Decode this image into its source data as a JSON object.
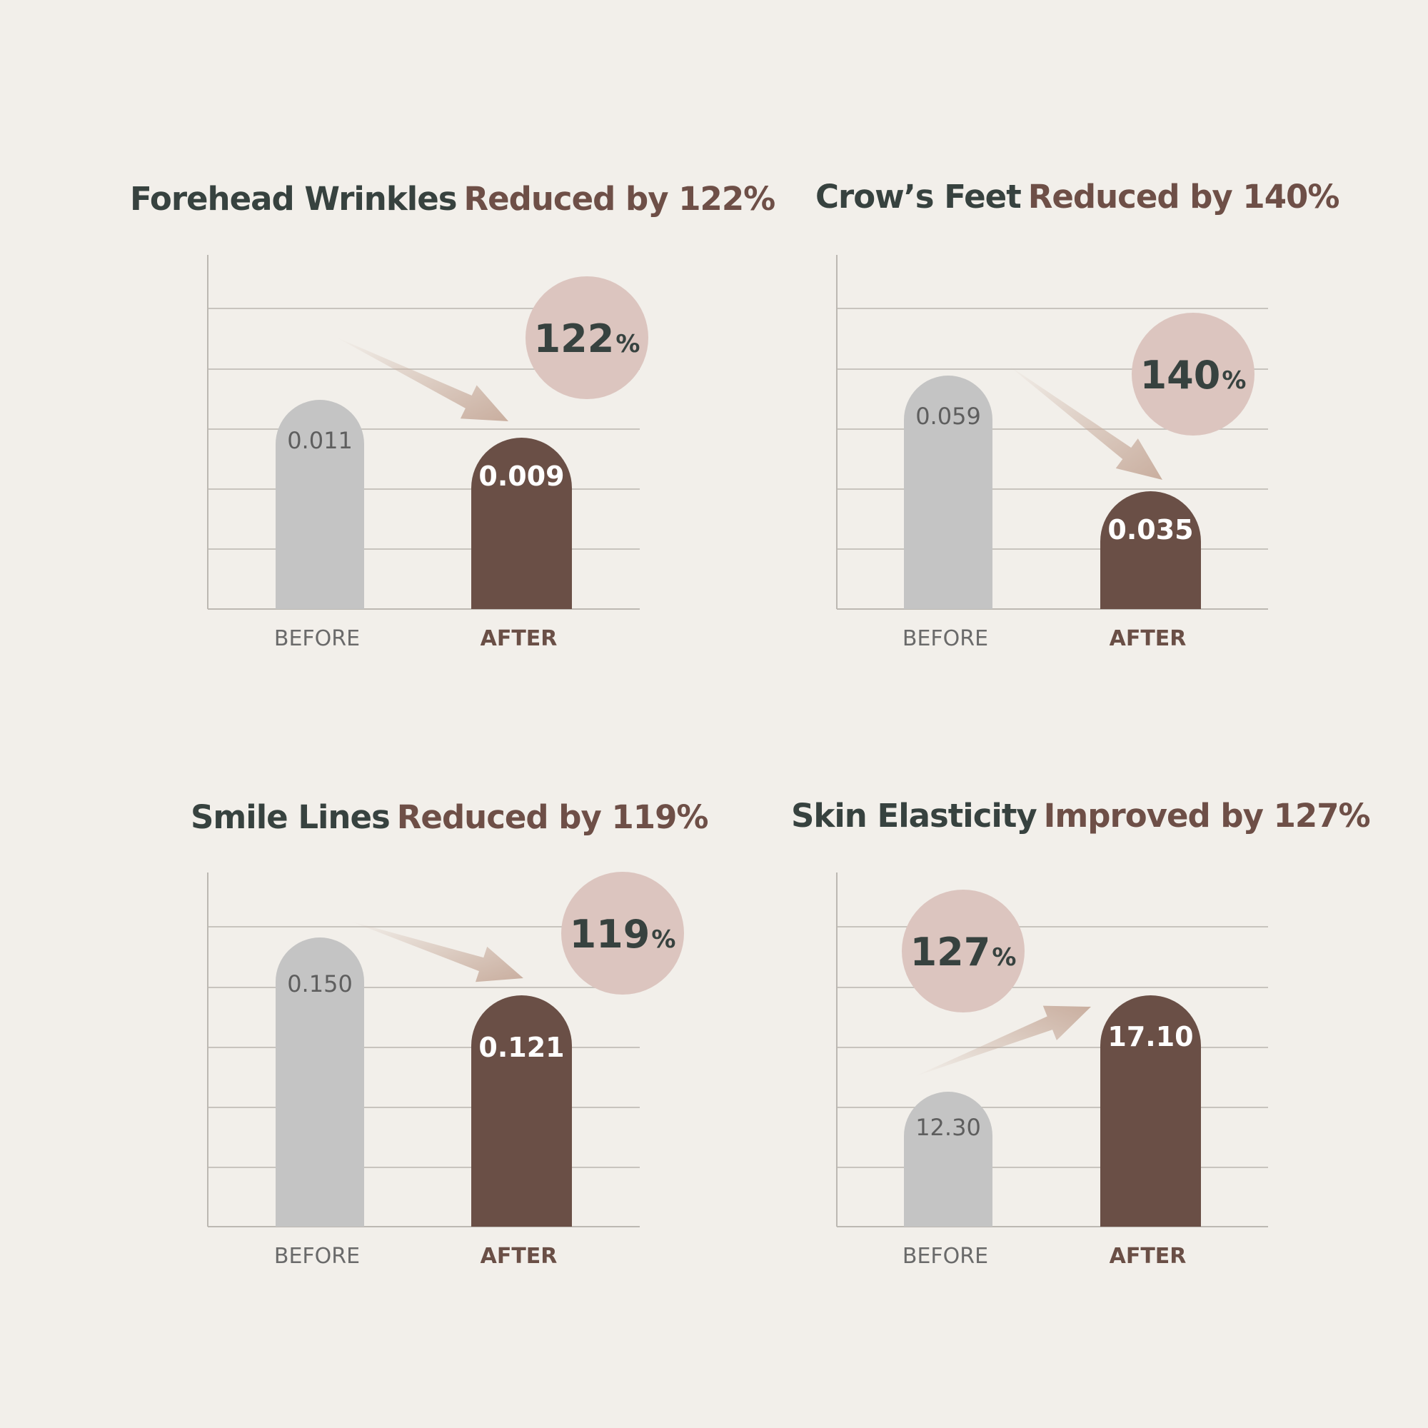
{
  "chart_data": [
    {
      "type": "bar",
      "title": "Forehead Wrinkles",
      "title_accent": "Reduced by 122%",
      "categories": [
        "BEFORE",
        "AFTER"
      ],
      "values": [
        0.011,
        0.009
      ],
      "value_labels": [
        "0.011",
        "0.009"
      ],
      "badge": {
        "number": "122",
        "unit": "%"
      },
      "trend": "down",
      "grid": true
    },
    {
      "type": "bar",
      "title": "Crow’s Feet",
      "title_accent": "Reduced by 140%",
      "categories": [
        "BEFORE",
        "AFTER"
      ],
      "values": [
        0.059,
        0.035
      ],
      "value_labels": [
        "0.059",
        "0.035"
      ],
      "badge": {
        "number": "140",
        "unit": "%"
      },
      "trend": "down",
      "grid": true
    },
    {
      "type": "bar",
      "title": "Smile Lines",
      "title_accent": "Reduced by 119%",
      "categories": [
        "BEFORE",
        "AFTER"
      ],
      "values": [
        0.15,
        0.121
      ],
      "value_labels": [
        "0.150",
        "0.121"
      ],
      "badge": {
        "number": "119",
        "unit": "%"
      },
      "trend": "down",
      "grid": true
    },
    {
      "type": "bar",
      "title": "Skin Elasticity",
      "title_accent": "Improved by 127%",
      "categories": [
        "BEFORE",
        "AFTER"
      ],
      "values": [
        12.3,
        17.1
      ],
      "value_labels": [
        "12.30",
        "17.10"
      ],
      "badge": {
        "number": "127",
        "unit": "%"
      },
      "trend": "up",
      "grid": true
    }
  ],
  "colors": {
    "background": "#f2efea",
    "before_bar": "#c4c4c4",
    "after_bar": "#6a4f46",
    "badge": "#dcc5bf",
    "title_dark": "#37423f",
    "title_accent": "#6e4f47",
    "arrow": "#c9ae9f"
  }
}
